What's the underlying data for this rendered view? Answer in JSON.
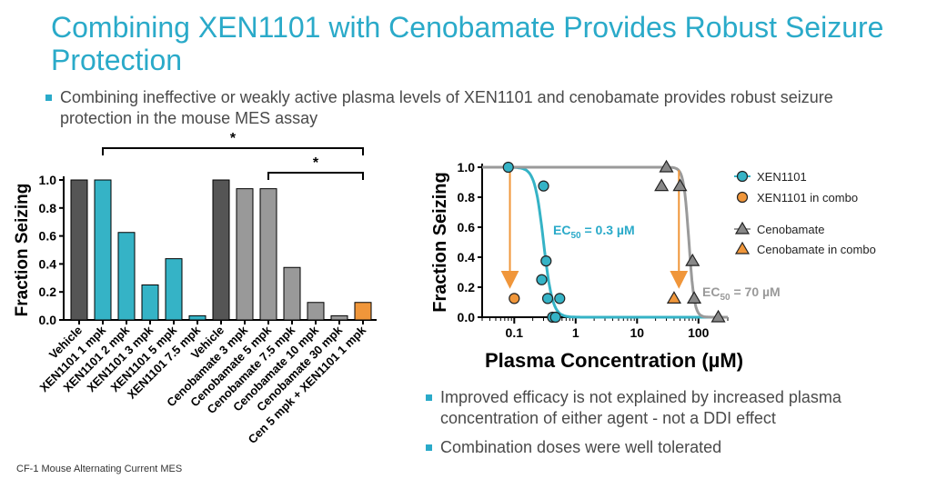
{
  "title": "Combining XEN1101 with Cenobamate Provides Robust Seizure Protection",
  "bullets_top": [
    "Combining ineffective or weakly active plasma levels of XEN1101 and cenobamate provides robust seizure protection in the mouse MES assay"
  ],
  "bullets_bottom": [
    "Improved efficacy is not explained by increased plasma concentration of either agent - not a DDI effect",
    "Combination doses were well tolerated"
  ],
  "footer": "CF-1 Mouse Alternating Current MES",
  "colors": {
    "accent": "#2aaac9",
    "xen": "#35b3c6",
    "ceno": "#999999",
    "dark": "#555555",
    "combo": "#f0963a",
    "ceno_curve": "#9a9a9a"
  },
  "chart_data": [
    {
      "type": "bar",
      "ylabel": "Fraction Seizing",
      "ylim": [
        0,
        1.0
      ],
      "yticks": [
        "0.0",
        "0.2",
        "0.4",
        "0.6",
        "0.8",
        "1.0"
      ],
      "categories": [
        "Vehicle",
        "XEN1101 1 mpk",
        "XEN1101 2 mpk",
        "XEN1101 3 mpk",
        "XEN1101 5 mpk",
        "XEN1101 7.5 mpk",
        "Vehicle",
        "Cenobamate 3 mpk",
        "Cenobamate 5 mpk",
        "Cenobamate 7.5 mpk",
        "Cenobamate 10 mpk",
        "Cenobamate 30 mpk",
        "Cen 5 mpk + XEN1101 1 mpk"
      ],
      "values": [
        1.0,
        1.0,
        0.625,
        0.25,
        0.4375,
        0.03,
        1.0,
        0.9375,
        0.9375,
        0.375,
        0.125,
        0.03,
        0.125
      ],
      "groups": [
        "vehicle",
        "xen",
        "xen",
        "xen",
        "xen",
        "xen",
        "vehicle",
        "ceno",
        "ceno",
        "ceno",
        "ceno",
        "ceno",
        "combo"
      ],
      "annotations": [
        {
          "text": "*",
          "from": "XEN1101 1 mpk",
          "to": "Cen 5 mpk + XEN1101 1 mpk"
        },
        {
          "text": "*",
          "from": "Cenobamate 5 mpk",
          "to": "Cen 5 mpk + XEN1101 1 mpk"
        }
      ]
    },
    {
      "type": "scatter",
      "xscale": "log",
      "xlabel": "Plasma Concentration (µM)",
      "ylabel": "Fraction Seizing",
      "xlim": [
        0.03,
        300
      ],
      "ylim": [
        0,
        1.0
      ],
      "xticks": [
        {
          "value": 0.1,
          "label": "0.1"
        },
        {
          "value": 1,
          "label": "1"
        },
        {
          "value": 10,
          "label": "10"
        },
        {
          "value": 100,
          "label": "100"
        }
      ],
      "yticks": [
        "0.0",
        "0.2",
        "0.4",
        "0.6",
        "0.8",
        "1.0"
      ],
      "series": [
        {
          "name": "XEN1101",
          "marker": "circle",
          "color": "#35b3c6",
          "points": [
            [
              0.08,
              1.0
            ],
            [
              0.3,
              0.875
            ],
            [
              0.33,
              0.375
            ],
            [
              0.28,
              0.25
            ],
            [
              0.35,
              0.125
            ],
            [
              0.55,
              0.125
            ],
            [
              0.42,
              0.0
            ],
            [
              0.47,
              0.0
            ]
          ]
        },
        {
          "name": "XEN1101 in combo",
          "marker": "circle",
          "color": "#f0963a",
          "points": [
            [
              0.1,
              0.125
            ]
          ]
        },
        {
          "name": "Cenobamate",
          "marker": "triangle",
          "color": "#888888",
          "points": [
            [
              30,
              1.0
            ],
            [
              25,
              0.875
            ],
            [
              50,
              0.875
            ],
            [
              80,
              0.375
            ],
            [
              85,
              0.125
            ],
            [
              210,
              0.0
            ]
          ]
        },
        {
          "name": "Cenobamate in combo",
          "marker": "triangle",
          "color": "#f0963a",
          "points": [
            [
              40,
              0.125
            ]
          ]
        }
      ],
      "curves": [
        {
          "name": "XEN1101 fit",
          "ec50": 0.3,
          "hill": 6,
          "color": "#35b3c6"
        },
        {
          "name": "Cenobamate fit",
          "ec50": 70,
          "hill": 10,
          "color": "#9a9a9a"
        }
      ],
      "ec50_labels": [
        {
          "prefix": "EC",
          "sub": "50",
          "suffix": " = 0.3 µM",
          "color": "#2aaac9"
        },
        {
          "prefix": "EC",
          "sub": "50",
          "suffix": " = 70 µM",
          "color": "#9a9a9a"
        }
      ],
      "arrows": [
        {
          "from": [
            0.085,
            0.98
          ],
          "to": [
            0.085,
            0.25
          ]
        },
        {
          "from": [
            48,
            0.98
          ],
          "to": [
            48,
            0.25
          ]
        }
      ]
    }
  ]
}
